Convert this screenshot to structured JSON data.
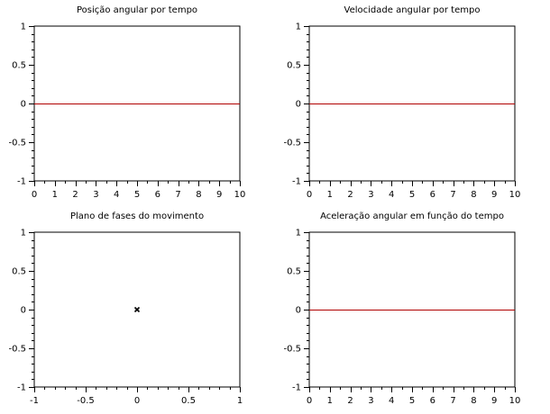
{
  "chart_data": [
    {
      "type": "line",
      "title": "Posição angular por tempo",
      "xlabel": "",
      "ylabel": "",
      "xlim": [
        0,
        10
      ],
      "ylim": [
        -1,
        1
      ],
      "x_ticks": [
        0,
        1,
        2,
        3,
        4,
        5,
        6,
        7,
        8,
        9,
        10
      ],
      "x_tick_labels": [
        "0",
        "1",
        "2",
        "3",
        "4",
        "5",
        "6",
        "7",
        "8",
        "9",
        "10"
      ],
      "y_ticks": [
        1,
        0.5,
        0,
        -0.5,
        -1
      ],
      "y_tick_labels": [
        "1",
        "0.5",
        "0",
        "-0.5",
        "-1"
      ],
      "grid": false,
      "series": [
        {
          "color": "#b00000",
          "marker": "none",
          "x": [
            0,
            10
          ],
          "y": [
            0,
            0
          ]
        }
      ]
    },
    {
      "type": "line",
      "title": "Velocidade angular por tempo",
      "xlabel": "",
      "ylabel": "",
      "xlim": [
        0,
        10
      ],
      "ylim": [
        -1,
        1
      ],
      "x_ticks": [
        0,
        1,
        2,
        3,
        4,
        5,
        6,
        7,
        8,
        9,
        10
      ],
      "x_tick_labels": [
        "0",
        "1",
        "2",
        "3",
        "4",
        "5",
        "6",
        "7",
        "8",
        "9",
        "10"
      ],
      "y_ticks": [
        1,
        0.5,
        0,
        -0.5,
        -1
      ],
      "y_tick_labels": [
        "1",
        "0.5",
        "0",
        "-0.5",
        "-1"
      ],
      "grid": false,
      "series": [
        {
          "color": "#b00000",
          "marker": "none",
          "x": [
            0,
            10
          ],
          "y": [
            0,
            0
          ]
        }
      ]
    },
    {
      "type": "scatter",
      "title": "Plano de fases do movimento",
      "xlabel": "",
      "ylabel": "",
      "xlim": [
        -1,
        1
      ],
      "ylim": [
        -1,
        1
      ],
      "x_ticks": [
        -1,
        -0.5,
        0,
        0.5,
        1
      ],
      "x_tick_labels": [
        "-1",
        "-0.5",
        "0",
        "0.5",
        "1"
      ],
      "y_ticks": [
        1,
        0.5,
        0,
        -0.5,
        -1
      ],
      "y_tick_labels": [
        "1",
        "0.5",
        "0",
        "-0.5",
        "-1"
      ],
      "grid": false,
      "series": [
        {
          "color": "#000000",
          "marker": "x",
          "x": [
            0
          ],
          "y": [
            0
          ]
        }
      ]
    },
    {
      "type": "line",
      "title": "Aceleração angular em função do tempo",
      "xlabel": "",
      "ylabel": "",
      "xlim": [
        0,
        10
      ],
      "ylim": [
        -1,
        1
      ],
      "x_ticks": [
        0,
        1,
        2,
        3,
        4,
        5,
        6,
        7,
        8,
        9,
        10
      ],
      "x_tick_labels": [
        "0",
        "1",
        "2",
        "3",
        "4",
        "5",
        "6",
        "7",
        "8",
        "9",
        "10"
      ],
      "y_ticks": [
        1,
        0.5,
        0,
        -0.5,
        -1
      ],
      "y_tick_labels": [
        "1",
        "0.5",
        "0",
        "-0.5",
        "-1"
      ],
      "grid": false,
      "series": [
        {
          "color": "#b00000",
          "marker": "none",
          "x": [
            0,
            10
          ],
          "y": [
            0,
            0
          ]
        }
      ]
    }
  ]
}
